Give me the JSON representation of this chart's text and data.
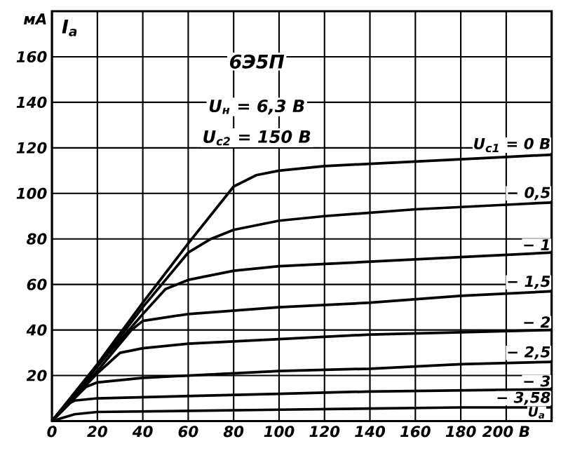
{
  "chart_data": {
    "type": "line",
    "title": "6Э5П",
    "annotations": [
      "U$_{н}$ = 6,3 В",
      "U$_{c2}$ = 150 В",
      "мА"
    ],
    "xlabel": "U$_{a}$",
    "ylabel": "I$_{a}$",
    "xlim": [
      0,
      220
    ],
    "ylim": [
      0,
      180
    ],
    "xticks": [
      0,
      20,
      40,
      60,
      80,
      100,
      120,
      140,
      160,
      180,
      {
        "value": 200,
        "label": "200 В"
      }
    ],
    "yticks": [
      20,
      40,
      60,
      80,
      100,
      120,
      140,
      160
    ],
    "grid": true,
    "marker": "none",
    "line_style": "solid",
    "series": [
      {
        "name": "U$_{c1}$ = 0 В",
        "color": "#000000",
        "x": [
          0,
          20,
          40,
          60,
          80,
          90,
          100,
          120,
          140,
          160,
          180,
          200,
          220
        ],
        "values": [
          0,
          25,
          52,
          78,
          103,
          108,
          110,
          112,
          113,
          114,
          115,
          116,
          117
        ]
      },
      {
        "name": "− 0,5",
        "color": "#000000",
        "x": [
          0,
          20,
          40,
          60,
          70,
          80,
          100,
          120,
          160,
          200,
          220
        ],
        "values": [
          0,
          24,
          50,
          74,
          80,
          84,
          88,
          90,
          93,
          95,
          96
        ]
      },
      {
        "name": "− 1",
        "color": "#000000",
        "x": [
          0,
          20,
          40,
          50,
          60,
          80,
          100,
          140,
          180,
          220
        ],
        "values": [
          0,
          24,
          47,
          58,
          62,
          66,
          68,
          70,
          72,
          74
        ]
      },
      {
        "name": "− 1,5",
        "color": "#000000",
        "x": [
          0,
          20,
          35,
          40,
          60,
          100,
          140,
          180,
          220
        ],
        "values": [
          0,
          22,
          40,
          44,
          47,
          50,
          52,
          55,
          57
        ]
      },
      {
        "name": "− 2",
        "color": "#000000",
        "x": [
          0,
          20,
          30,
          40,
          60,
          100,
          140,
          180,
          220
        ],
        "values": [
          0,
          21,
          30,
          32,
          34,
          36,
          38,
          39,
          40
        ]
      },
      {
        "name": "− 2,5",
        "color": "#000000",
        "x": [
          0,
          15,
          20,
          40,
          60,
          100,
          140,
          180,
          220
        ],
        "values": [
          0,
          15,
          17,
          19,
          20,
          22,
          23,
          25,
          26
        ]
      },
      {
        "name": "− 3",
        "color": "#000000",
        "x": [
          0,
          8,
          10,
          20,
          60,
          100,
          140,
          180,
          220
        ],
        "values": [
          0,
          8,
          9,
          10,
          11,
          12,
          13,
          13.5,
          14
        ]
      },
      {
        "name": "− 3,58",
        "color": "#000000",
        "x": [
          0,
          10,
          20,
          60,
          100,
          140,
          180,
          220
        ],
        "values": [
          0,
          3,
          4,
          4.5,
          5,
          5.5,
          6,
          6
        ]
      }
    ]
  }
}
